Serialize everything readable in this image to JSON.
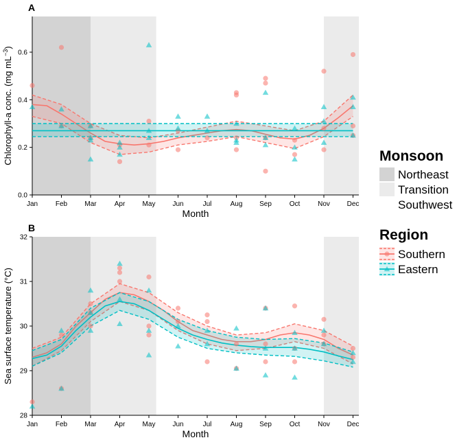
{
  "colors": {
    "southern": "#F8766D",
    "eastern": "#00BFC4",
    "northeast_shade": "#D3D3D3",
    "transition_shade": "#EBEBEB",
    "axis": "#000000"
  },
  "legend": {
    "monsoon_title": "Monsoon",
    "monsoon_items": [
      "Northeast",
      "Transition",
      "Southwest"
    ],
    "region_title": "Region",
    "region_items": [
      "Southern",
      "Eastern"
    ]
  },
  "chart_data": [
    {
      "panel": "A",
      "type": "scatter",
      "title": "",
      "xlabel": "Month",
      "ylabel_main": "Chlorophyll-a conc. (mg  mL",
      "ylabel_sup": "−3",
      "ylabel_end": ")",
      "categories": [
        "Jan",
        "Feb",
        "Mar",
        "Apr",
        "May",
        "Jun",
        "Jul",
        "Aug",
        "Sep",
        "Oct",
        "Nov",
        "Dec"
      ],
      "yticks": [
        "0.0",
        "0.2",
        "0.4",
        "0.6"
      ],
      "ylim": [
        0,
        0.75
      ],
      "monsoon_bands": [
        {
          "name": "Northeast",
          "from": 1,
          "to": 3
        },
        {
          "name": "Transition",
          "from": 3,
          "to": 5.25
        },
        {
          "name": "Transition",
          "from": 11,
          "to": 12.2
        }
      ],
      "series": [
        {
          "name": "Southern",
          "points": [
            [
              1,
              0.46
            ],
            [
              2,
              0.62
            ],
            [
              2,
              0.29
            ],
            [
              3,
              0.24
            ],
            [
              3,
              0.29
            ],
            [
              4,
              0.14
            ],
            [
              4,
              0.21
            ],
            [
              5,
              0.31
            ],
            [
              5,
              0.21
            ],
            [
              6,
              0.19
            ],
            [
              6,
              0.27
            ],
            [
              7,
              0.24
            ],
            [
              8,
              0.43
            ],
            [
              8,
              0.42
            ],
            [
              8,
              0.19
            ],
            [
              8,
              0.24
            ],
            [
              9,
              0.49
            ],
            [
              9,
              0.47
            ],
            [
              9,
              0.1
            ],
            [
              9,
              0.24
            ],
            [
              10,
              0.17
            ],
            [
              10,
              0.23
            ],
            [
              11,
              0.52
            ],
            [
              11,
              0.19
            ],
            [
              11,
              0.28
            ],
            [
              12,
              0.59
            ],
            [
              12,
              0.29
            ],
            [
              12,
              0.25
            ]
          ],
          "fit": [
            [
              1,
              0.38
            ],
            [
              1.5,
              0.375
            ],
            [
              2,
              0.34
            ],
            [
              2.5,
              0.3
            ],
            [
              3,
              0.26
            ],
            [
              3.5,
              0.225
            ],
            [
              4,
              0.215
            ],
            [
              4.5,
              0.21
            ],
            [
              5,
              0.215
            ],
            [
              5.5,
              0.225
            ],
            [
              6,
              0.24
            ],
            [
              6.5,
              0.25
            ],
            [
              7,
              0.26
            ],
            [
              7.5,
              0.27
            ],
            [
              8,
              0.275
            ],
            [
              8.5,
              0.27
            ],
            [
              9,
              0.255
            ],
            [
              9.5,
              0.24
            ],
            [
              10,
              0.235
            ],
            [
              10.5,
              0.25
            ],
            [
              11,
              0.28
            ],
            [
              11.5,
              0.325
            ],
            [
              12,
              0.375
            ]
          ],
          "band": [
            [
              1,
              0.42,
              0.33
            ],
            [
              2,
              0.38,
              0.3
            ],
            [
              3,
              0.3,
              0.22
            ],
            [
              4,
              0.25,
              0.17
            ],
            [
              5,
              0.24,
              0.18
            ],
            [
              6,
              0.26,
              0.21
            ],
            [
              7,
              0.285,
              0.225
            ],
            [
              8,
              0.31,
              0.245
            ],
            [
              9,
              0.29,
              0.22
            ],
            [
              10,
              0.27,
              0.195
            ],
            [
              11,
              0.31,
              0.245
            ],
            [
              12,
              0.42,
              0.33
            ]
          ]
        },
        {
          "name": "Eastern",
          "points": [
            [
              1,
              0.37
            ],
            [
              2,
              0.36
            ],
            [
              2,
              0.29
            ],
            [
              3,
              0.29
            ],
            [
              3,
              0.23
            ],
            [
              3,
              0.15
            ],
            [
              3,
              0.24
            ],
            [
              4,
              0.22
            ],
            [
              4,
              0.2
            ],
            [
              4,
              0.17
            ],
            [
              5,
              0.63
            ],
            [
              5,
              0.27
            ],
            [
              5,
              0.24
            ],
            [
              6,
              0.33
            ],
            [
              6,
              0.28
            ],
            [
              7,
              0.33
            ],
            [
              7,
              0.27
            ],
            [
              8,
              0.3
            ],
            [
              8,
              0.23
            ],
            [
              8,
              0.22
            ],
            [
              9,
              0.43
            ],
            [
              9,
              0.24
            ],
            [
              9,
              0.21
            ],
            [
              10,
              0.28
            ],
            [
              10,
              0.15
            ],
            [
              10,
              0.2
            ],
            [
              11,
              0.37
            ],
            [
              11,
              0.31
            ],
            [
              11,
              0.22
            ],
            [
              12,
              0.41
            ],
            [
              12,
              0.37
            ],
            [
              12,
              0.25
            ]
          ],
          "fit": [
            [
              1,
              0.27
            ],
            [
              12,
              0.27
            ]
          ],
          "band": [
            [
              1,
              0.3,
              0.245
            ],
            [
              12,
              0.3,
              0.245
            ]
          ]
        }
      ]
    },
    {
      "panel": "B",
      "type": "scatter",
      "title": "",
      "xlabel": "Month",
      "ylabel_main": "Sea surface temperature (°C)",
      "categories": [
        "Jan",
        "Feb",
        "Mar",
        "Apr",
        "May",
        "Jun",
        "Jul",
        "Aug",
        "Sep",
        "Oct",
        "Nov",
        "Dec"
      ],
      "yticks": [
        "28",
        "29",
        "30",
        "31",
        "32"
      ],
      "ylim": [
        28,
        32
      ],
      "monsoon_bands": [
        {
          "name": "Northeast",
          "from": 1,
          "to": 3
        },
        {
          "name": "Transition",
          "from": 3,
          "to": 5.25
        },
        {
          "name": "Transition",
          "from": 11,
          "to": 12.2
        }
      ],
      "series": [
        {
          "name": "Southern",
          "points": [
            [
              1,
              28.3
            ],
            [
              2,
              28.6
            ],
            [
              2,
              29.8
            ],
            [
              3,
              30.5
            ],
            [
              3,
              30.3
            ],
            [
              3,
              30.0
            ],
            [
              4,
              31.3
            ],
            [
              4,
              31.2
            ],
            [
              4,
              31.0
            ],
            [
              5,
              31.1
            ],
            [
              5,
              30.0
            ],
            [
              5,
              29.8
            ],
            [
              6,
              30.4
            ],
            [
              6,
              30.1
            ],
            [
              7,
              30.25
            ],
            [
              7,
              30.1
            ],
            [
              7,
              29.2
            ],
            [
              8,
              29.6
            ],
            [
              8,
              29.05
            ],
            [
              9,
              30.4
            ],
            [
              9,
              29.6
            ],
            [
              9,
              29.2
            ],
            [
              10,
              30.45
            ],
            [
              10,
              29.5
            ],
            [
              10,
              29.2
            ],
            [
              11,
              30.15
            ],
            [
              11,
              29.8
            ],
            [
              11,
              29.6
            ],
            [
              12,
              29.5
            ],
            [
              12,
              29.3
            ]
          ],
          "fit": [
            [
              1,
              29.3
            ],
            [
              1.5,
              29.4
            ],
            [
              2,
              29.6
            ],
            [
              2.5,
              30.0
            ],
            [
              3,
              30.3
            ],
            [
              3.5,
              30.6
            ],
            [
              4,
              30.75
            ],
            [
              4.5,
              30.7
            ],
            [
              5,
              30.55
            ],
            [
              5.5,
              30.35
            ],
            [
              6,
              30.1
            ],
            [
              6.5,
              29.9
            ],
            [
              7,
              29.8
            ],
            [
              7.5,
              29.7
            ],
            [
              8,
              29.65
            ],
            [
              8.5,
              29.65
            ],
            [
              9,
              29.7
            ],
            [
              9.5,
              29.8
            ],
            [
              10,
              29.85
            ],
            [
              10.5,
              29.8
            ],
            [
              11,
              29.7
            ],
            [
              11.5,
              29.5
            ],
            [
              12,
              29.35
            ]
          ],
          "band": [
            [
              1,
              29.5,
              29.1
            ],
            [
              2,
              29.75,
              29.45
            ],
            [
              3,
              30.5,
              30.1
            ],
            [
              4,
              30.95,
              30.55
            ],
            [
              5,
              30.75,
              30.35
            ],
            [
              6,
              30.3,
              29.9
            ],
            [
              7,
              30.0,
              29.6
            ],
            [
              8,
              29.8,
              29.45
            ],
            [
              9,
              29.85,
              29.5
            ],
            [
              10,
              30.05,
              29.65
            ],
            [
              11,
              29.9,
              29.5
            ],
            [
              12,
              29.55,
              29.15
            ]
          ]
        },
        {
          "name": "Eastern",
          "points": [
            [
              1,
              28.2
            ],
            [
              2,
              28.6
            ],
            [
              2,
              29.9
            ],
            [
              3,
              30.8
            ],
            [
              3,
              30.3
            ],
            [
              3,
              29.9
            ],
            [
              4,
              31.4
            ],
            [
              4,
              30.6
            ],
            [
              4,
              30.05
            ],
            [
              5,
              30.8
            ],
            [
              5,
              29.9
            ],
            [
              5,
              29.35
            ],
            [
              6,
              30.0
            ],
            [
              6,
              29.55
            ],
            [
              7,
              29.9
            ],
            [
              7,
              29.6
            ],
            [
              8,
              29.95
            ],
            [
              8,
              29.05
            ],
            [
              9,
              30.4
            ],
            [
              9,
              29.5
            ],
            [
              9,
              28.9
            ],
            [
              10,
              29.85
            ],
            [
              10,
              29.5
            ],
            [
              10,
              28.85
            ],
            [
              11,
              29.9
            ],
            [
              11,
              29.6
            ],
            [
              12,
              29.4
            ],
            [
              12,
              29.2
            ]
          ],
          "fit": [
            [
              1,
              29.27
            ],
            [
              1.5,
              29.35
            ],
            [
              2,
              29.55
            ],
            [
              2.5,
              29.9
            ],
            [
              3,
              30.2
            ],
            [
              3.5,
              30.45
            ],
            [
              4,
              30.55
            ],
            [
              4.5,
              30.5
            ],
            [
              5,
              30.35
            ],
            [
              5.5,
              30.15
            ],
            [
              6,
              29.95
            ],
            [
              6.5,
              29.8
            ],
            [
              7,
              29.7
            ],
            [
              7.5,
              29.62
            ],
            [
              8,
              29.57
            ],
            [
              8.5,
              29.54
            ],
            [
              9,
              29.52
            ],
            [
              9.5,
              29.52
            ],
            [
              10,
              29.52
            ],
            [
              10.5,
              29.48
            ],
            [
              11,
              29.42
            ],
            [
              11.5,
              29.33
            ],
            [
              12,
              29.25
            ]
          ],
          "band": [
            [
              1,
              29.45,
              29.1
            ],
            [
              2,
              29.7,
              29.4
            ],
            [
              3,
              30.4,
              30.0
            ],
            [
              4,
              30.75,
              30.35
            ],
            [
              5,
              30.55,
              30.15
            ],
            [
              6,
              30.15,
              29.75
            ],
            [
              7,
              29.9,
              29.5
            ],
            [
              8,
              29.75,
              29.4
            ],
            [
              9,
              29.7,
              29.35
            ],
            [
              10,
              29.72,
              29.32
            ],
            [
              11,
              29.62,
              29.22
            ],
            [
              12,
              29.42,
              29.08
            ]
          ]
        }
      ]
    }
  ]
}
